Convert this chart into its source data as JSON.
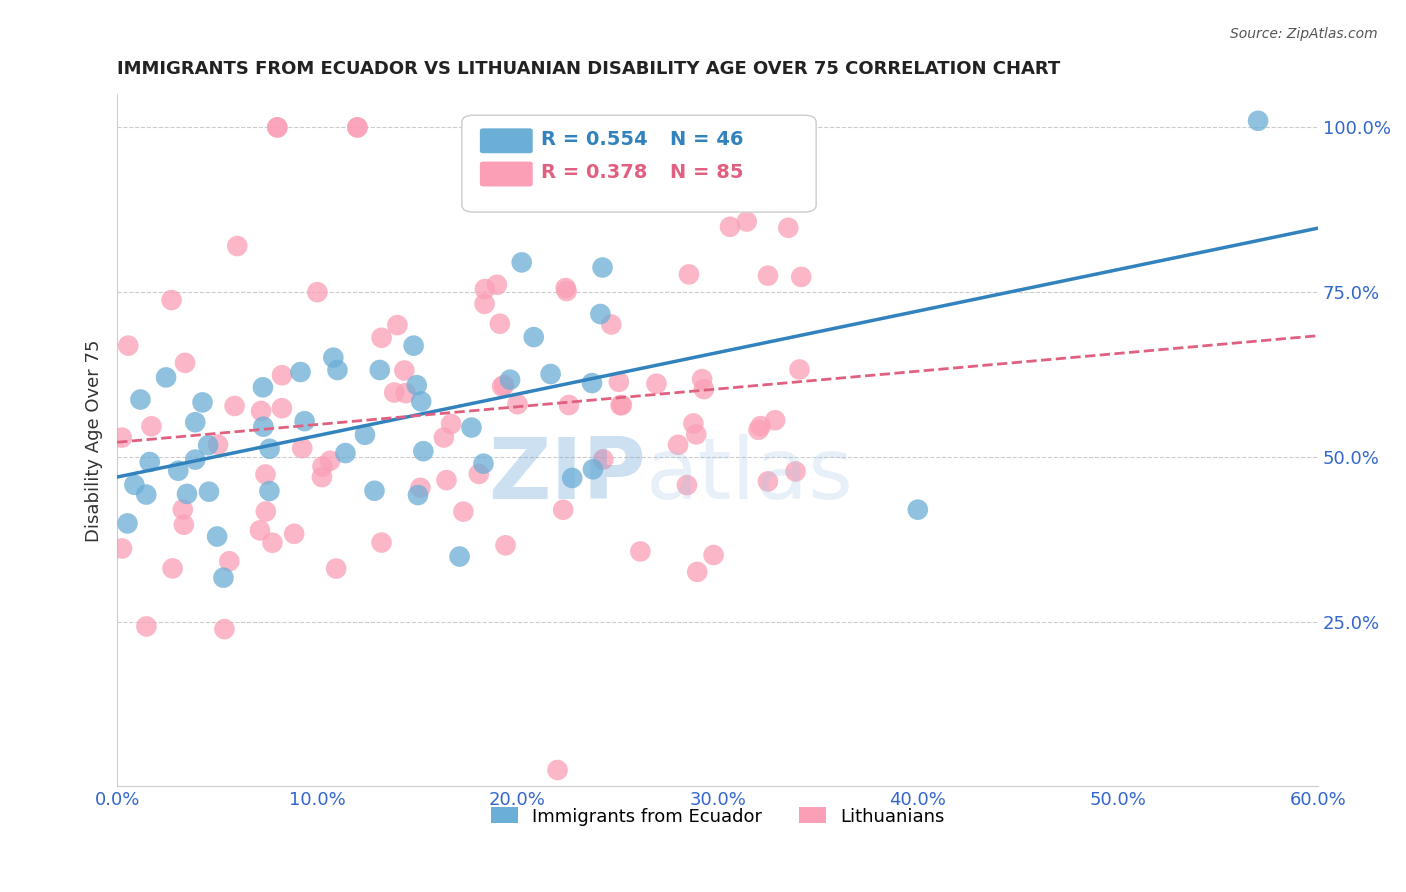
{
  "title": "IMMIGRANTS FROM ECUADOR VS LITHUANIAN DISABILITY AGE OVER 75 CORRELATION CHART",
  "source": "Source: ZipAtlas.com",
  "xlabel_ticks": [
    "0.0%",
    "10.0%",
    "20.0%",
    "30.0%",
    "40.0%",
    "50.0%",
    "60.0%"
  ],
  "xlabel_vals": [
    0.0,
    0.1,
    0.2,
    0.3,
    0.4,
    0.5,
    0.6
  ],
  "ylabel_ticks": [
    "25.0%",
    "50.0%",
    "75.0%",
    "100.0%"
  ],
  "ylabel_vals": [
    0.25,
    0.5,
    0.75,
    1.0
  ],
  "ylabel_label": "Disability Age Over 75",
  "watermark_zip": "ZIP",
  "watermark_atlas": "atlas",
  "series1_color": "#6baed6",
  "series2_color": "#fa9fb5",
  "trend1_color": "#3182bd",
  "trend2_color": "#e06080",
  "legend_series1_label": "Immigrants from Ecuador",
  "legend_series2_label": "Lithuanians",
  "legend_r1": "R = 0.554",
  "legend_n1": "N = 46",
  "legend_r2": "R = 0.378",
  "legend_n2": "N = 85",
  "series1_R": 0.554,
  "series2_R": 0.378,
  "series1_N": 46,
  "series2_N": 85,
  "xlim": [
    0.0,
    0.6
  ],
  "ylim": [
    0.0,
    1.05
  ],
  "background_color": "#ffffff",
  "grid_color": "#cccccc",
  "seed1": 42,
  "seed2": 99
}
